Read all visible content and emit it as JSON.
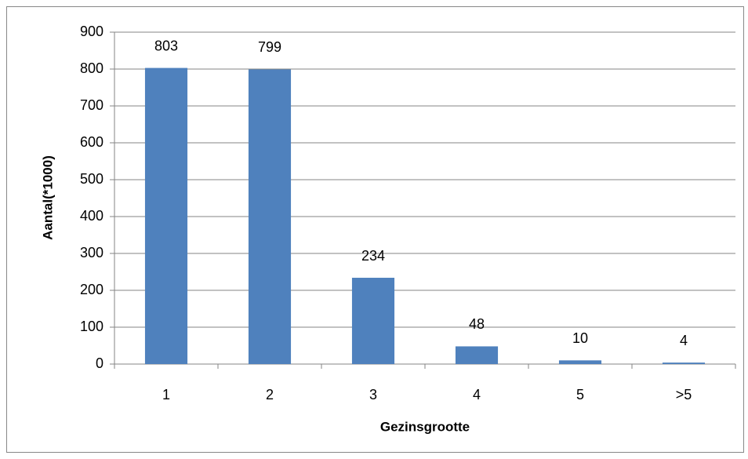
{
  "chart_data": {
    "type": "bar",
    "categories": [
      "1",
      "2",
      "3",
      "4",
      "5",
      ">5"
    ],
    "values": [
      803,
      799,
      234,
      48,
      10,
      4
    ],
    "color": "#4f81bd",
    "x_label": "Gezinsgrootte",
    "y_label": "Aantal(*1000)",
    "ylim": [
      0,
      900
    ],
    "yticks": [
      0,
      100,
      200,
      300,
      400,
      500,
      600,
      700,
      800,
      900
    ],
    "grid": true
  }
}
